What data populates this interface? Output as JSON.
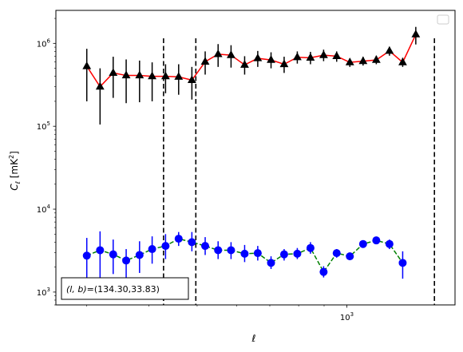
{
  "chart_data": {
    "type": "scatter",
    "title": "",
    "xlabel": "ℓ",
    "ylabel_main": "C",
    "ylabel_sub": "ℓ",
    "ylabel_unit_pre": "[mK",
    "ylabel_unit_sup": "2",
    "ylabel_unit_post": "]",
    "xscale": "log",
    "yscale": "log",
    "xlim": [
      260,
      1650
    ],
    "ylim": [
      700,
      2500000
    ],
    "x_ticks": [
      {
        "value": 1000,
        "base": "10",
        "exp": "3"
      }
    ],
    "y_ticks": [
      {
        "value": 1000,
        "base": "10",
        "exp": "3"
      },
      {
        "value": 10000,
        "base": "10",
        "exp": "4"
      },
      {
        "value": 100000,
        "base": "10",
        "exp": "5"
      },
      {
        "value": 1000000,
        "base": "10",
        "exp": "6"
      }
    ],
    "vlines": [
      428,
      497,
      1500
    ],
    "legend": "top-right",
    "series": [
      {
        "color": "#ff0000",
        "marker": "triangle",
        "marker_color": "#000000",
        "linestyle": "solid",
        "points": [
          {
            "x": 300,
            "y": 530000,
            "lo": 200000,
            "hi": 860000
          },
          {
            "x": 319,
            "y": 300000,
            "lo": 105000,
            "hi": 500000
          },
          {
            "x": 339,
            "y": 440000,
            "lo": 220000,
            "hi": 690000
          },
          {
            "x": 360,
            "y": 410000,
            "lo": 190000,
            "hi": 640000
          },
          {
            "x": 383,
            "y": 410000,
            "lo": 195000,
            "hi": 620000
          },
          {
            "x": 406,
            "y": 400000,
            "lo": 200000,
            "hi": 590000
          },
          {
            "x": 432,
            "y": 400000,
            "lo": 250000,
            "hi": 560000
          },
          {
            "x": 459,
            "y": 395000,
            "lo": 240000,
            "hi": 560000
          },
          {
            "x": 488,
            "y": 360000,
            "lo": 210000,
            "hi": 520000
          },
          {
            "x": 519,
            "y": 600000,
            "lo": 420000,
            "hi": 800000
          },
          {
            "x": 551,
            "y": 740000,
            "lo": 520000,
            "hi": 980000
          },
          {
            "x": 585,
            "y": 720000,
            "lo": 510000,
            "hi": 950000
          },
          {
            "x": 623,
            "y": 550000,
            "lo": 420000,
            "hi": 700000
          },
          {
            "x": 662,
            "y": 660000,
            "lo": 520000,
            "hi": 810000
          },
          {
            "x": 704,
            "y": 630000,
            "lo": 500000,
            "hi": 780000
          },
          {
            "x": 748,
            "y": 560000,
            "lo": 440000,
            "hi": 690000
          },
          {
            "x": 795,
            "y": 680000,
            "lo": 570000,
            "hi": 800000
          },
          {
            "x": 845,
            "y": 670000,
            "lo": 560000,
            "hi": 790000
          },
          {
            "x": 898,
            "y": 720000,
            "lo": 610000,
            "hi": 840000
          },
          {
            "x": 954,
            "y": 700000,
            "lo": 600000,
            "hi": 800000
          },
          {
            "x": 1014,
            "y": 590000,
            "lo": 520000,
            "hi": 660000
          },
          {
            "x": 1078,
            "y": 610000,
            "lo": 540000,
            "hi": 690000
          },
          {
            "x": 1146,
            "y": 630000,
            "lo": 560000,
            "hi": 710000
          },
          {
            "x": 1218,
            "y": 810000,
            "lo": 710000,
            "hi": 910000
          },
          {
            "x": 1295,
            "y": 590000,
            "lo": 520000,
            "hi": 670000
          },
          {
            "x": 1376,
            "y": 1280000,
            "lo": 970000,
            "hi": 1580000
          }
        ]
      },
      {
        "color": "#008000",
        "marker": "circle",
        "marker_color": "#0000ff",
        "linestyle": "dashed",
        "points": [
          {
            "x": 300,
            "y": 2750,
            "lo": 1500,
            "hi": 4500
          },
          {
            "x": 319,
            "y": 3200,
            "lo": 1500,
            "hi": 5400
          },
          {
            "x": 339,
            "y": 2850,
            "lo": 1650,
            "hi": 4300
          },
          {
            "x": 360,
            "y": 2400,
            "lo": 1500,
            "hi": 3300
          },
          {
            "x": 383,
            "y": 2800,
            "lo": 1700,
            "hi": 4100
          },
          {
            "x": 406,
            "y": 3300,
            "lo": 2200,
            "hi": 4700
          },
          {
            "x": 432,
            "y": 3600,
            "lo": 2500,
            "hi": 5000
          },
          {
            "x": 459,
            "y": 4400,
            "lo": 3600,
            "hi": 5300
          },
          {
            "x": 488,
            "y": 4000,
            "lo": 3100,
            "hi": 5300
          },
          {
            "x": 519,
            "y": 3600,
            "lo": 2800,
            "hi": 4600
          },
          {
            "x": 551,
            "y": 3200,
            "lo": 2500,
            "hi": 4100
          },
          {
            "x": 585,
            "y": 3200,
            "lo": 2500,
            "hi": 4000
          },
          {
            "x": 623,
            "y": 2900,
            "lo": 2300,
            "hi": 3700
          },
          {
            "x": 662,
            "y": 2950,
            "lo": 2400,
            "hi": 3600
          },
          {
            "x": 704,
            "y": 2250,
            "lo": 1900,
            "hi": 2700
          },
          {
            "x": 748,
            "y": 2850,
            "lo": 2400,
            "hi": 3300
          },
          {
            "x": 795,
            "y": 2900,
            "lo": 2500,
            "hi": 3400
          },
          {
            "x": 845,
            "y": 3400,
            "lo": 2900,
            "hi": 4000
          },
          {
            "x": 898,
            "y": 1750,
            "lo": 1500,
            "hi": 2050
          },
          {
            "x": 954,
            "y": 2950,
            "lo": 2600,
            "hi": 3300
          },
          {
            "x": 1014,
            "y": 2700,
            "lo": 2450,
            "hi": 3000
          },
          {
            "x": 1078,
            "y": 3800,
            "lo": 3500,
            "hi": 4100
          },
          {
            "x": 1146,
            "y": 4200,
            "lo": 3800,
            "hi": 4600
          },
          {
            "x": 1218,
            "y": 3800,
            "lo": 3300,
            "hi": 4300
          },
          {
            "x": 1295,
            "y": 2250,
            "lo": 1450,
            "hi": 3100
          }
        ]
      }
    ],
    "annotation": {
      "text": "(l, b)=(134.30,33.83)",
      "location": "bottom-left"
    }
  }
}
